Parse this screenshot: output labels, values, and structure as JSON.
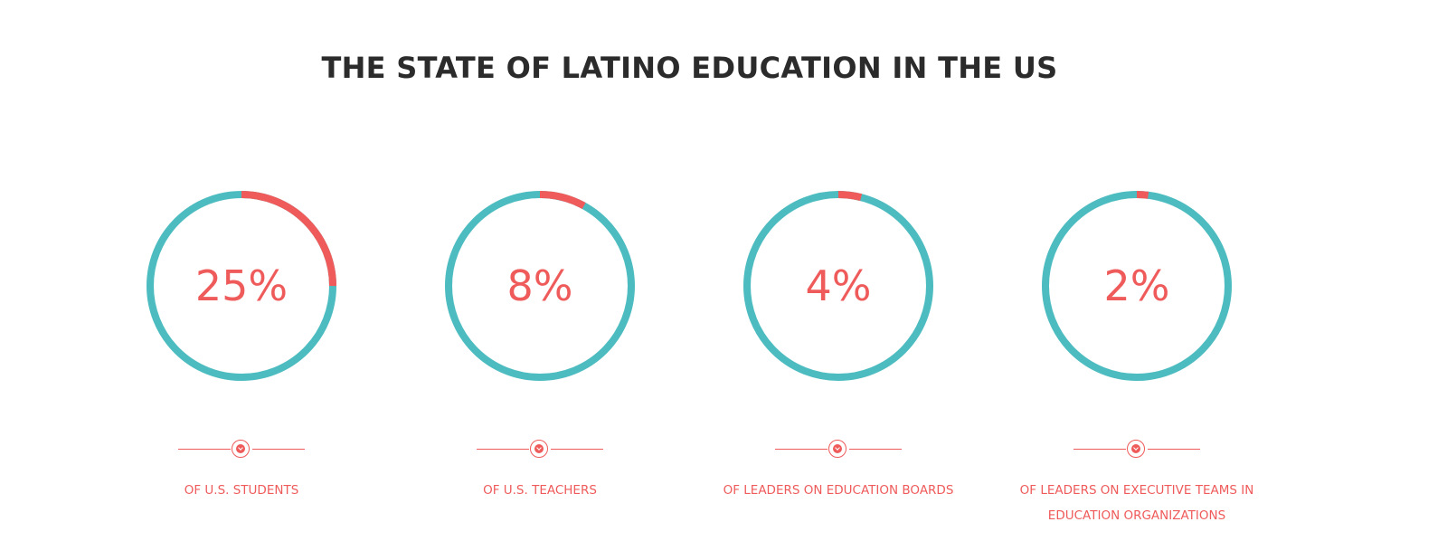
{
  "title": "THE STATE OF LATINO EDUCATION IN THE US",
  "colors": {
    "title": "#2b2b2b",
    "accent": "#ef5b5b",
    "ring": "#4dbcc0"
  },
  "stats": [
    {
      "value": "25%",
      "percent": 25,
      "caption": "OF U.S. STUDENTS",
      "icon": "chevron-down-icon"
    },
    {
      "value": "8%",
      "percent": 8,
      "caption": "OF U.S. TEACHERS",
      "icon": "chevron-down-icon"
    },
    {
      "value": "4%",
      "percent": 4,
      "caption": "OF LEADERS ON EDUCATION BOARDS",
      "icon": "chevron-down-icon"
    },
    {
      "value": "2%",
      "percent": 2,
      "caption": "OF LEADERS ON EXECUTIVE TEAMS IN EDUCATION ORGANIZATIONS",
      "icon": "chevron-down-icon"
    }
  ]
}
